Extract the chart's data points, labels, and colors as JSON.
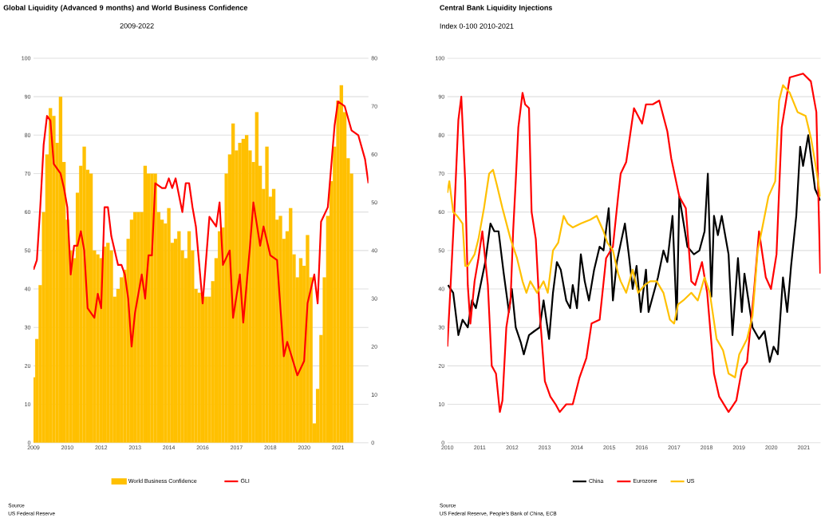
{
  "chart_data": [
    {
      "type": "bar",
      "title": "Global Liquidity (Advanced 9 months) and World Business Confidence",
      "subtitle": "2009-2022",
      "categories": [
        "2009",
        null,
        null,
        null,
        null,
        null,
        null,
        null,
        null,
        null,
        "2010",
        null,
        null,
        null,
        null,
        null,
        null,
        null,
        null,
        null,
        "2012",
        null,
        null,
        null,
        null,
        null,
        null,
        null,
        null,
        null,
        "2013",
        null,
        null,
        null,
        null,
        null,
        null,
        null,
        null,
        null,
        "2014",
        null,
        null,
        null,
        null,
        null,
        null,
        null,
        null,
        null,
        "2016",
        null,
        null,
        null,
        null,
        null,
        null,
        null,
        null,
        null,
        "2017",
        null,
        null,
        null,
        null,
        null,
        null,
        null,
        null,
        null,
        "2018",
        null,
        null,
        null,
        null,
        null,
        null,
        null,
        null,
        null,
        "2020",
        null,
        null,
        null,
        null,
        null,
        null,
        null,
        null,
        null,
        "2021",
        null,
        null,
        null,
        null,
        null,
        null,
        null,
        null,
        null
      ],
      "ylim": [
        0,
        100
      ],
      "yticks": [
        0,
        10,
        20,
        30,
        40,
        50,
        60,
        70,
        80,
        90,
        100
      ],
      "y2lim": [
        0,
        80
      ],
      "y2ticks": [
        0,
        10,
        20,
        30,
        40,
        50,
        60,
        70,
        80
      ],
      "grid": "y",
      "legend": "bottom",
      "series": [
        {
          "name": "World Business Confidence",
          "color": "#ffc000",
          "values": [
            17,
            27,
            41,
            60,
            75,
            87,
            85,
            78,
            90,
            73,
            58,
            50,
            48,
            65,
            72,
            77,
            71,
            70,
            50,
            49,
            48,
            51,
            52,
            50,
            38,
            40,
            43,
            45,
            53,
            58,
            60,
            60,
            60,
            72,
            70,
            70,
            70,
            60,
            58,
            57,
            61,
            52,
            53,
            55,
            50,
            48,
            55,
            50,
            40,
            39,
            38,
            38,
            38,
            42,
            48,
            55,
            56,
            70,
            75,
            83,
            76,
            78,
            79,
            80,
            76,
            73,
            86,
            72,
            66,
            77,
            64,
            66,
            58,
            59,
            53,
            55,
            61,
            49,
            43,
            48,
            46,
            54,
            43,
            5,
            14,
            28,
            43,
            59,
            68,
            77,
            89,
            93,
            86,
            74,
            70,
            null,
            null,
            null,
            null,
            null
          ]
        },
        {
          "name": "GLI",
          "type": "line",
          "axis": "y2",
          "color": "#ff0000",
          "values": [
            36,
            38,
            49,
            62,
            68,
            67,
            58,
            57,
            56,
            53,
            49,
            35,
            41,
            41,
            44,
            40,
            28,
            null,
            26,
            31,
            28,
            49,
            49,
            43,
            null,
            37,
            37,
            35,
            30,
            20,
            27,
            null,
            35,
            30,
            39,
            39,
            54,
            null,
            53,
            53,
            55,
            53,
            55,
            null,
            48,
            54,
            54,
            49,
            45,
            null,
            29,
            null,
            47,
            null,
            45,
            50,
            37,
            null,
            40,
            26,
            null,
            35,
            25,
            null,
            41,
            50,
            null,
            41,
            45,
            null,
            39,
            null,
            38,
            null,
            18,
            21,
            null,
            null,
            14,
            null,
            17,
            29,
            null,
            35,
            29,
            46,
            null,
            49,
            null,
            66,
            71,
            null,
            70,
            null,
            65,
            null,
            64,
            null,
            59,
            54
          ]
        }
      ],
      "annotations": [
        "Source",
        "US Federal Reserve"
      ]
    },
    {
      "type": "line",
      "title": "Central Bank Liquidity Injections",
      "subtitle": "Index 0-100 2010-2021",
      "xlim": [
        2010,
        2021.52
      ],
      "xticks": [
        2010,
        2011,
        2012,
        2013,
        2014,
        2015,
        2016,
        2017,
        2018,
        2019,
        2020,
        2021
      ],
      "ylim": [
        0,
        100
      ],
      "yticks": [
        0,
        10,
        20,
        30,
        40,
        50,
        60,
        70,
        80,
        90,
        100
      ],
      "grid": "y",
      "legend": "bottom",
      "series": [
        {
          "name": "China",
          "color": "#000000",
          "x": [
            2010.02,
            2010.18,
            2010.34,
            2010.47,
            2010.63,
            2010.76,
            2010.88,
            2011.0,
            2011.17,
            2011.33,
            2011.45,
            2011.58,
            2011.74,
            2011.9,
            2011.99,
            2012.11,
            2012.27,
            2012.36,
            2012.52,
            2012.68,
            2012.85,
            2012.97,
            2013.14,
            2013.26,
            2013.38,
            2013.5,
            2013.67,
            2013.79,
            2013.87,
            2014.0,
            2014.12,
            2014.24,
            2014.37,
            2014.53,
            2014.7,
            2014.82,
            2014.98,
            2015.11,
            2015.23,
            2015.48,
            2015.6,
            2015.72,
            2015.84,
            2015.97,
            2016.13,
            2016.21,
            2016.5,
            2016.67,
            2016.79,
            2016.95,
            2017.08,
            2017.16,
            2017.41,
            2017.61,
            2017.78,
            2017.94,
            2018.04,
            2018.15,
            2018.23,
            2018.35,
            2018.47,
            2018.68,
            2018.8,
            2018.97,
            2019.09,
            2019.17,
            2019.42,
            2019.62,
            2019.79,
            2019.95,
            2020.07,
            2020.2,
            2020.36,
            2020.49,
            2020.61,
            2020.77,
            2020.89,
            2020.98,
            2021.14,
            2021.35,
            2021.51
          ],
          "values": [
            41,
            39,
            28,
            32,
            30,
            37,
            35,
            40,
            47,
            57,
            55,
            55,
            44,
            34,
            40,
            30,
            26,
            23,
            28,
            29,
            30,
            37,
            27,
            39,
            47,
            45,
            37,
            35,
            41,
            35,
            49,
            42,
            37,
            45,
            51,
            50,
            61,
            37,
            47,
            57,
            49,
            40,
            46,
            34,
            45,
            34,
            43,
            50,
            47,
            59,
            32,
            64,
            51,
            49,
            50,
            55,
            70,
            38,
            59,
            54,
            59,
            49,
            28,
            48,
            34,
            44,
            30,
            27,
            29,
            21,
            25,
            23,
            43,
            34,
            46,
            59,
            77,
            72,
            80,
            66,
            63
          ]
        },
        {
          "name": "Eurozone",
          "color": "#ff0000",
          "x": [
            2010.0,
            2010.1,
            2010.22,
            2010.34,
            2010.43,
            2010.55,
            2010.63,
            2010.71,
            2010.84,
            2010.96,
            2011.08,
            2011.25,
            2011.37,
            2011.5,
            2011.62,
            2011.7,
            2011.82,
            2011.95,
            2012.03,
            2012.11,
            2012.19,
            2012.32,
            2012.4,
            2012.52,
            2012.6,
            2012.73,
            2012.85,
            2013.01,
            2013.18,
            2013.34,
            2013.47,
            2013.67,
            2013.87,
            2014.08,
            2014.29,
            2014.45,
            2014.7,
            2014.9,
            2015.11,
            2015.27,
            2015.35,
            2015.52,
            2015.76,
            2016.01,
            2016.13,
            2016.34,
            2016.54,
            2016.79,
            2016.91,
            2017.16,
            2017.36,
            2017.53,
            2017.65,
            2017.86,
            2018.02,
            2018.23,
            2018.39,
            2018.68,
            2018.92,
            2019.09,
            2019.25,
            2019.46,
            2019.62,
            2019.83,
            2019.99,
            2020.16,
            2020.32,
            2020.57,
            2020.98,
            2021.22,
            2021.39,
            2021.51
          ],
          "values": [
            25,
            41,
            61,
            84,
            90,
            68,
            41,
            31,
            42,
            48,
            55,
            41,
            20,
            18,
            8,
            11,
            30,
            37,
            55,
            68,
            82,
            91,
            88,
            87,
            60,
            53,
            34,
            16,
            12,
            10,
            8,
            10,
            10,
            17,
            22,
            31,
            32,
            48,
            51,
            64,
            70,
            73,
            87,
            83,
            88,
            88,
            89,
            81,
            74,
            64,
            61,
            42,
            41,
            47,
            39,
            18,
            12,
            8,
            11,
            19,
            21,
            39,
            55,
            43,
            40,
            49,
            82,
            95,
            96,
            94,
            86,
            44
          ]
        },
        {
          "name": "US",
          "color": "#ffc000",
          "x": [
            2010.0,
            2010.06,
            2010.18,
            2010.3,
            2010.47,
            2010.55,
            2010.63,
            2010.84,
            2010.96,
            2011.13,
            2011.29,
            2011.41,
            2011.53,
            2011.7,
            2011.95,
            2012.15,
            2012.32,
            2012.44,
            2012.56,
            2012.77,
            2012.97,
            2013.1,
            2013.26,
            2013.42,
            2013.59,
            2013.71,
            2013.87,
            2014.12,
            2014.41,
            2014.61,
            2014.82,
            2014.94,
            2015.11,
            2015.27,
            2015.35,
            2015.52,
            2015.72,
            2015.89,
            2016.09,
            2016.26,
            2016.46,
            2016.67,
            2016.87,
            2017.0,
            2017.12,
            2017.28,
            2017.53,
            2017.73,
            2017.94,
            2018.1,
            2018.31,
            2018.51,
            2018.68,
            2018.88,
            2019.01,
            2019.25,
            2019.42,
            2019.58,
            2019.7,
            2019.91,
            2020.12,
            2020.24,
            2020.36,
            2020.57,
            2020.81,
            2021.06,
            2021.23,
            2021.39,
            2021.51
          ],
          "values": [
            65,
            68,
            60,
            59,
            57,
            46,
            46,
            49,
            53,
            61,
            70,
            71,
            67,
            61,
            53,
            48,
            42,
            39,
            42,
            39,
            42,
            39,
            50,
            52,
            59,
            57,
            56,
            57,
            58,
            59,
            55,
            52,
            50,
            44,
            42,
            39,
            45,
            39,
            41,
            42,
            42,
            39,
            32,
            31,
            36,
            37,
            39,
            37,
            43,
            39,
            27,
            24,
            18,
            17,
            23,
            27,
            33,
            50,
            55,
            64,
            68,
            89,
            93,
            91,
            86,
            85,
            79,
            71,
            64
          ]
        }
      ],
      "annotations": [
        "Source",
        "US Federal Reserve, People's Bank of China, ECB"
      ]
    }
  ]
}
